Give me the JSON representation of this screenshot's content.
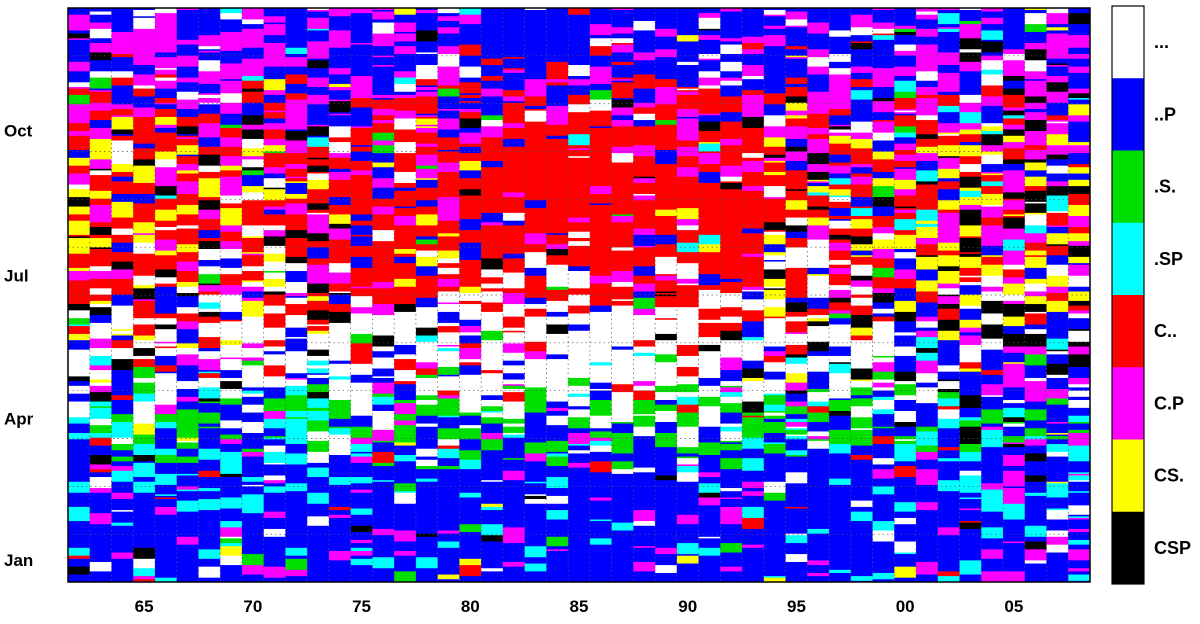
{
  "chart_data": {
    "type": "heatmap",
    "title": "",
    "xlabel": "",
    "ylabel": "",
    "x_range": [
      1962,
      2009
    ],
    "x_ticks": [
      "65",
      "70",
      "75",
      "80",
      "85",
      "90",
      "95",
      "00",
      "05"
    ],
    "x_tick_years": [
      1965,
      1970,
      1975,
      1980,
      1985,
      1990,
      1995,
      2000,
      2005
    ],
    "y_ticks": [
      "Jan",
      "Apr",
      "Jul",
      "Oct"
    ],
    "y_tick_days": [
      15,
      105,
      196,
      288
    ],
    "y_range_days": [
      1,
      366
    ],
    "grid": true,
    "legend_position": "right",
    "categories": [
      {
        "code": "...",
        "color": "#ffffff"
      },
      {
        "code": "..P",
        "color": "#0000ff"
      },
      {
        "code": ".S.",
        "color": "#00e000"
      },
      {
        "code": ".SP",
        "color": "#00ffff"
      },
      {
        "code": "C..",
        "color": "#ff0000"
      },
      {
        "code": "C.P",
        "color": "#ff00ff"
      },
      {
        "code": "CS.",
        "color": "#ffff00"
      },
      {
        "code": "CSP",
        "color": "#000000"
      }
    ]
  }
}
